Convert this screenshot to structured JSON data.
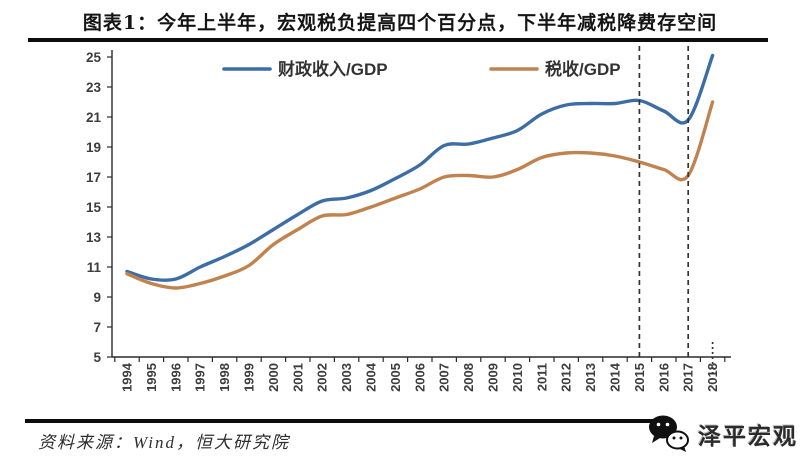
{
  "header": {
    "title": "图表1：今年上半年，宏观税负提高四个百分点，下半年减税降费存空间"
  },
  "footer": {
    "source_label": "资料来源：Wind，恒大研究院",
    "logo_text": "泽平宏观",
    "logo_icon": "wechat-icon"
  },
  "colors": {
    "fiscal_line": "#3d6da5",
    "tax_line": "#c08350",
    "axis": "#2b2b2b",
    "tick_label": "#3d3d3d",
    "dashed_line": "#333333",
    "legend_text": "#333333",
    "rule": "#0d0d0d"
  },
  "chart_data": {
    "type": "line",
    "title": "",
    "xlabel": "",
    "ylabel": "",
    "x": [
      1994,
      1995,
      1996,
      1997,
      1998,
      1999,
      2000,
      2001,
      2002,
      2003,
      2004,
      2005,
      2006,
      2007,
      2008,
      2009,
      2010,
      2011,
      2012,
      2013,
      2014,
      2015,
      2016,
      2017,
      2018
    ],
    "series": [
      {
        "name": "财政收入/GDP",
        "color": "#3d6da5",
        "values": [
          10.7,
          10.2,
          10.2,
          11.0,
          11.7,
          12.5,
          13.5,
          14.5,
          15.4,
          15.6,
          16.1,
          16.9,
          17.8,
          19.1,
          19.2,
          19.6,
          20.1,
          21.2,
          21.8,
          21.9,
          21.9,
          22.1,
          21.4,
          20.8,
          25.1
        ]
      },
      {
        "name": "税收/GDP",
        "color": "#c08350",
        "values": [
          10.55,
          9.9,
          9.6,
          9.9,
          10.4,
          11.1,
          12.5,
          13.5,
          14.4,
          14.5,
          15.0,
          15.6,
          16.2,
          17.0,
          17.1,
          17.0,
          17.5,
          18.3,
          18.6,
          18.6,
          18.4,
          18.0,
          17.5,
          17.1,
          22.0
        ]
      }
    ],
    "ylim": [
      5,
      25
    ],
    "ytick_step": 2,
    "grid": false,
    "legend_position": "top-inside",
    "annotations": {
      "dashed_vlines_years": [
        2015,
        2017
      ],
      "dotted_axis_mark_year": 2018
    }
  }
}
